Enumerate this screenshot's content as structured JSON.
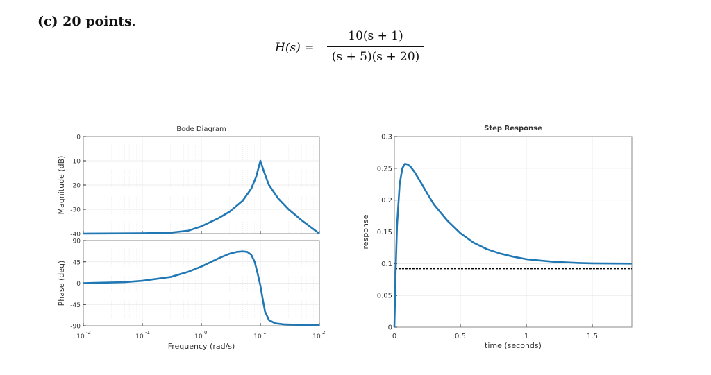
{
  "header": {
    "label_prefix": "(c) 20 points",
    "label_suffix": "."
  },
  "equation": {
    "lhs": "H(s) =",
    "numerator": "10(s + 1)",
    "denominator": "(s + 5)(s + 20)"
  },
  "colors": {
    "curve": "#1f77b4",
    "axis": "#333333",
    "grid": "#e6e6e6",
    "dashed": "#000000"
  },
  "chart_data": [
    {
      "type": "line",
      "title": "Bode Diagram",
      "subplot": "magnitude",
      "xlabel": "Frequency  (rad/s)",
      "ylabel": "Magnitude (dB)",
      "xscale": "log",
      "xlim": [
        0.01,
        100
      ],
      "ylim": [
        -40,
        0
      ],
      "xticks": [
        0.01,
        0.1,
        1,
        10,
        100
      ],
      "yticks": [
        0,
        -10,
        -20,
        -30,
        -40
      ],
      "ytick_labels": [
        "0",
        "-10",
        "-20",
        "-30",
        "-40"
      ],
      "x_tick_labels": [
        {
          "base": "10",
          "exp": "-2"
        },
        {
          "base": "10",
          "exp": "-1"
        },
        {
          "base": "10",
          "exp": "0"
        },
        {
          "base": "10",
          "exp": "1"
        },
        {
          "base": "10",
          "exp": "2"
        }
      ],
      "series": [
        {
          "name": "magnitude",
          "x": [
            0.01,
            0.1,
            0.3,
            0.6,
            1,
            2,
            3,
            5,
            7,
            8.5,
            10,
            11.5,
            14,
            20,
            30,
            50,
            100
          ],
          "values": [
            -40,
            -39.9,
            -39.6,
            -38.8,
            -37,
            -33.5,
            -31,
            -26.5,
            -21.5,
            -16.5,
            -10,
            -14.5,
            -20,
            -25.5,
            -30,
            -34.5,
            -40
          ]
        }
      ]
    },
    {
      "type": "line",
      "subplot": "phase",
      "ylabel": "Phase (deg)",
      "xscale": "log",
      "xlim": [
        0.01,
        100
      ],
      "ylim": [
        -90,
        90
      ],
      "yticks": [
        90,
        45,
        0,
        -45,
        -90
      ],
      "ytick_labels": [
        "90",
        "45",
        "0",
        "-45",
        "-90"
      ],
      "series": [
        {
          "name": "phase",
          "x": [
            0.01,
            0.05,
            0.1,
            0.3,
            0.6,
            1,
            2,
            3,
            4,
            5,
            6,
            7,
            8,
            9,
            10,
            11,
            12,
            14,
            18,
            25,
            40,
            100
          ],
          "values": [
            0,
            2,
            5,
            13,
            24,
            35,
            53,
            62,
            66,
            67,
            66,
            60,
            45,
            20,
            -5,
            -35,
            -60,
            -78,
            -85,
            -87,
            -88,
            -89
          ]
        }
      ]
    },
    {
      "type": "line",
      "title": "Step Response",
      "xlabel": "time (seconds)",
      "ylabel": "response",
      "xlim": [
        0,
        1.8
      ],
      "ylim": [
        0,
        0.3
      ],
      "xticks": [
        0,
        0.5,
        1,
        1.5
      ],
      "xtick_labels": [
        "0",
        "0.5",
        "1",
        "1.5"
      ],
      "yticks": [
        0,
        0.05,
        0.1,
        0.15,
        0.2,
        0.25,
        0.3
      ],
      "ytick_labels": [
        "0",
        "0.05",
        "0.1",
        "0.15",
        "0.2",
        "0.25",
        "0.3"
      ],
      "steady_state": 0.1,
      "series": [
        {
          "name": "step response",
          "x": [
            0,
            0.01,
            0.02,
            0.04,
            0.06,
            0.08,
            0.1,
            0.12,
            0.15,
            0.2,
            0.25,
            0.3,
            0.4,
            0.5,
            0.6,
            0.7,
            0.8,
            0.9,
            1.0,
            1.1,
            1.2,
            1.3,
            1.4,
            1.5,
            1.6,
            1.7,
            1.8
          ],
          "values": [
            0,
            0.09,
            0.16,
            0.225,
            0.25,
            0.257,
            0.256,
            0.253,
            0.245,
            0.228,
            0.21,
            0.193,
            0.168,
            0.148,
            0.133,
            0.123,
            0.116,
            0.111,
            0.107,
            0.105,
            0.103,
            0.102,
            0.101,
            0.1005,
            0.1003,
            0.1001,
            0.1
          ]
        }
      ]
    }
  ]
}
